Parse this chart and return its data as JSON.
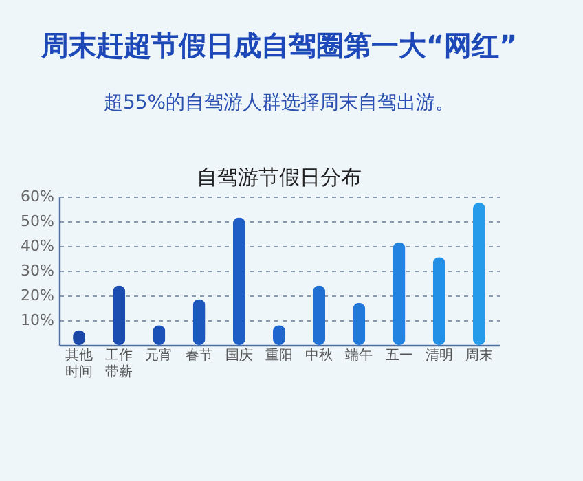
{
  "chart_data": {
    "type": "bar",
    "title": "周末赶超节假日成自驾圈第一大“网红”",
    "subtitle": "超55%的自驾游人群选择周末自驾出游。",
    "annotations": [
      "自驾游节假日分布"
    ],
    "categories": [
      "其他时间",
      "工作带薪",
      "元宵",
      "春节",
      "国庆",
      "重阳",
      "中秋",
      "端午",
      "五一",
      "清明",
      "周末"
    ],
    "values": [
      6,
      24,
      8,
      18.5,
      51.5,
      8,
      24,
      17,
      41.5,
      35.5,
      57.5
    ],
    "colors": [
      "#1a47a8",
      "#1b4cb0",
      "#1c52b8",
      "#1d58bf",
      "#1e5fc6",
      "#1f67cd",
      "#2070d4",
      "#2179da",
      "#2284e0",
      "#238fe5",
      "#259be9"
    ],
    "ylim": [
      0,
      60
    ],
    "yticks": [
      {
        "value": 10,
        "label": "10%"
      },
      {
        "value": 20,
        "label": "20%"
      },
      {
        "value": 30,
        "label": "30%"
      },
      {
        "value": 40,
        "label": "40%"
      },
      {
        "value": 50,
        "label": "50%"
      },
      {
        "value": 60,
        "label": "60%"
      }
    ],
    "grid": "y"
  }
}
